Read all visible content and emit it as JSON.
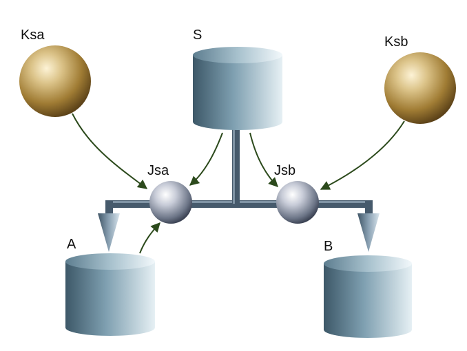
{
  "labels": {
    "ksa": "Ksa",
    "s": "S",
    "ksb": "Ksb",
    "jsa": "Jsa",
    "jsb": "Jsb",
    "a": "A",
    "b": "B"
  },
  "colors": {
    "background": "#ffffff",
    "cylinder_dark": "#3d5868",
    "cylinder_light": "#e6f0f4",
    "pipe": "#465a6c",
    "key_sphere": "#b08a3c",
    "junction_sphere": "#c8ccd8",
    "arrow": "#2c4a1c"
  }
}
